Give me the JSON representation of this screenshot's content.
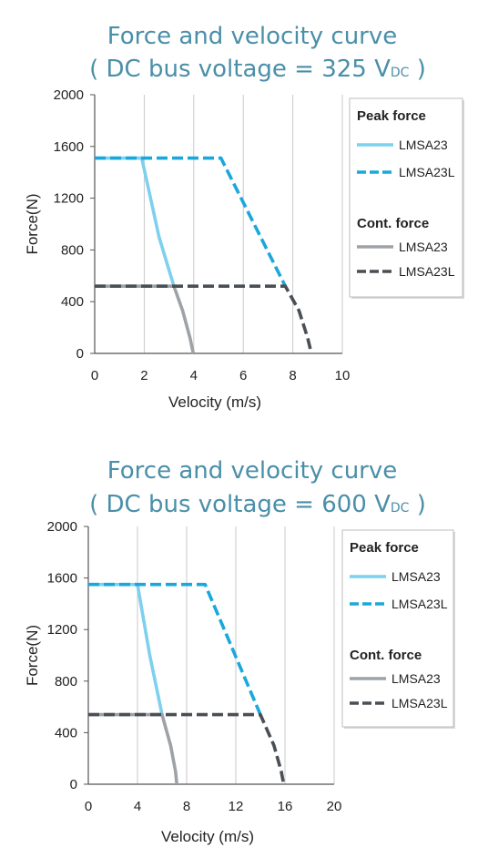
{
  "chart_data": [
    {
      "type": "line",
      "title_main": "Force and velocity curve",
      "title_sub_prefix": "( DC bus voltage = 325 V",
      "title_sub_unit": "DC",
      "title_sub_suffix": ")",
      "xlabel": "Velocity (m/s)",
      "ylabel": "Force(N)",
      "xlim": [
        0,
        10
      ],
      "ylim": [
        0,
        2000
      ],
      "xticks": [
        0,
        2,
        4,
        6,
        8,
        10
      ],
      "yticks": [
        0,
        400,
        800,
        1200,
        1600,
        2000
      ],
      "grid": true,
      "legend_position": "right",
      "legend_groups": [
        {
          "heading": "Peak force",
          "entries": [
            "LMSA23",
            "LMSA23L"
          ]
        },
        {
          "heading": "Cont. force",
          "entries": [
            "LMSA23",
            "LMSA23L"
          ]
        }
      ],
      "series": [
        {
          "name": "LMSA23",
          "group": "Peak force",
          "color": "#7dd0ee",
          "dash": false,
          "x": [
            0,
            1.9,
            2.6,
            3.2
          ],
          "y": [
            1510,
            1510,
            900,
            520
          ]
        },
        {
          "name": "LMSA23L",
          "group": "Peak force",
          "color": "#1aa8dc",
          "dash": true,
          "x": [
            0,
            5.1,
            7.7
          ],
          "y": [
            1510,
            1510,
            520
          ]
        },
        {
          "name": "LMSA23",
          "group": "Cont. force",
          "color": "#9ea2a6",
          "dash": false,
          "x": [
            0,
            3.2,
            3.55,
            3.85,
            3.98
          ],
          "y": [
            520,
            520,
            330,
            120,
            0
          ]
        },
        {
          "name": "LMSA23L",
          "group": "Cont. force",
          "color": "#4a4f55",
          "dash": true,
          "x": [
            0,
            7.7,
            8.25,
            8.6,
            8.75
          ],
          "y": [
            520,
            520,
            330,
            120,
            0
          ]
        }
      ]
    },
    {
      "type": "line",
      "title_main": "Force and velocity curve",
      "title_sub_prefix": "( DC bus voltage = 600 V",
      "title_sub_unit": "DC",
      "title_sub_suffix": ")",
      "xlabel": "Velocity (m/s)",
      "ylabel": "Force(N)",
      "xlim": [
        0,
        20
      ],
      "ylim": [
        0,
        2000
      ],
      "xticks": [
        0,
        4,
        8,
        12,
        16,
        20
      ],
      "yticks": [
        0,
        400,
        800,
        1200,
        1600,
        2000
      ],
      "grid": true,
      "legend_position": "right",
      "legend_groups": [
        {
          "heading": "Peak force",
          "entries": [
            "LMSA23",
            "LMSA23L"
          ]
        },
        {
          "heading": "Cont. force",
          "entries": [
            "LMSA23",
            "LMSA23L"
          ]
        }
      ],
      "series": [
        {
          "name": "LMSA23",
          "group": "Peak force",
          "color": "#7dd0ee",
          "dash": false,
          "x": [
            0,
            4,
            5,
            6
          ],
          "y": [
            1550,
            1550,
            1000,
            540
          ]
        },
        {
          "name": "LMSA23L",
          "group": "Peak force",
          "color": "#1aa8dc",
          "dash": true,
          "x": [
            0,
            9.5,
            14
          ],
          "y": [
            1550,
            1550,
            540
          ]
        },
        {
          "name": "LMSA23",
          "group": "Cont. force",
          "color": "#9ea2a6",
          "dash": false,
          "x": [
            0,
            6,
            6.7,
            7.1,
            7.2
          ],
          "y": [
            540,
            540,
            300,
            100,
            0
          ]
        },
        {
          "name": "LMSA23L",
          "group": "Cont. force",
          "color": "#4a4f55",
          "dash": true,
          "x": [
            0,
            14,
            15.1,
            15.7,
            15.9
          ],
          "y": [
            540,
            540,
            300,
            100,
            0
          ]
        }
      ]
    }
  ]
}
